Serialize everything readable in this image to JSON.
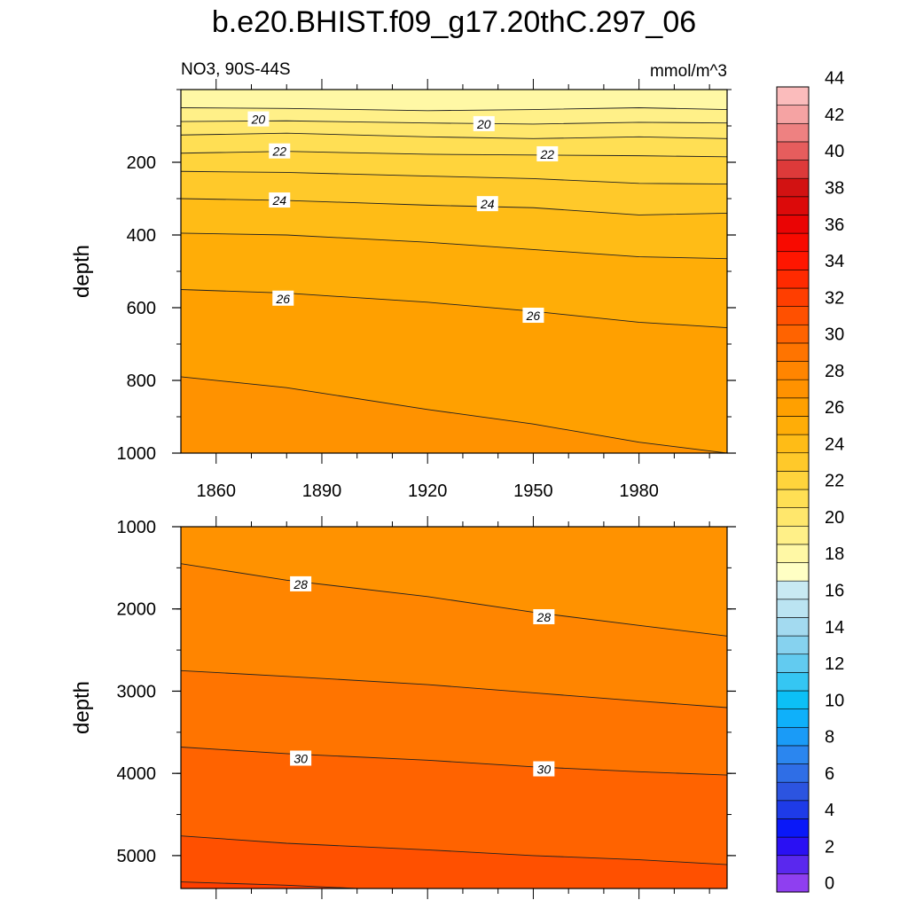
{
  "figure": {
    "title": "b.e20.BHIST.f09_g17.20thC.297_06",
    "left_label": "NO3, 90S-44S",
    "right_label": "mmol/m^3"
  },
  "colorbar": {
    "levels": [
      0,
      2,
      4,
      6,
      8,
      10,
      12,
      14,
      16,
      18,
      20,
      22,
      24,
      26,
      28,
      30,
      32,
      34,
      36,
      38,
      40,
      42,
      44
    ],
    "colors": [
      "#8f3ff0",
      "#5a28ee",
      "#2a10f3",
      "#0a18f8",
      "#1e3be8",
      "#2c54e0",
      "#2f6ee6",
      "#2b86ef",
      "#1a9bf7",
      "#0fb0fa",
      "#0cc0f6",
      "#35c6f3",
      "#62cbf0",
      "#86d2ef",
      "#a3daf0",
      "#bbe4f2",
      "#c8e9f2",
      "#ffffc4",
      "#fff8a5",
      "#fff088",
      "#ffe76c",
      "#ffdf54",
      "#ffd43c",
      "#ffc92a",
      "#ffbc16",
      "#ffad07",
      "#ffa000",
      "#ff9200",
      "#ff8500",
      "#ff7400",
      "#ff6300",
      "#ff5000",
      "#ff3e00",
      "#ff2a00",
      "#ff1600",
      "#f80a00",
      "#ea0404",
      "#dc0a0a",
      "#d21212",
      "#dd3a3a",
      "#e65d5d",
      "#ee8181",
      "#f5a3a3",
      "#fbbcbc"
    ],
    "tick_labels": [
      "0",
      "2",
      "4",
      "6",
      "8",
      "10",
      "12",
      "14",
      "16",
      "18",
      "20",
      "22",
      "24",
      "26",
      "28",
      "30",
      "32",
      "34",
      "36",
      "38",
      "40",
      "42",
      "44"
    ]
  },
  "chart_data": [
    {
      "type": "heatmap",
      "subtype": "filled-contour",
      "panel": "upper",
      "ylabel": "depth",
      "ylim": [
        0,
        1000
      ],
      "y_inverted": true,
      "y_ticks": [
        "200",
        "400",
        "600",
        "800",
        "1000"
      ],
      "x_ticks": [
        "1860",
        "1890",
        "1920",
        "1950",
        "1980"
      ],
      "xlim": [
        1850,
        2005
      ],
      "contour_interval": 1,
      "contours": [
        {
          "level": 19,
          "depth": [
            [
              1850,
              50
            ],
            [
              1880,
              52
            ],
            [
              1920,
              58
            ],
            [
              1950,
              55
            ],
            [
              1980,
              50
            ],
            [
              2005,
              55
            ]
          ]
        },
        {
          "level": 20,
          "depth": [
            [
              1850,
              88
            ],
            [
              1880,
              86
            ],
            [
              1920,
              92
            ],
            [
              1950,
              95
            ],
            [
              1980,
              90
            ],
            [
              2005,
              92
            ]
          ]
        },
        {
          "level": 21,
          "depth": [
            [
              1850,
              125
            ],
            [
              1880,
              120
            ],
            [
              1920,
              130
            ],
            [
              1950,
              135
            ],
            [
              1980,
              130
            ],
            [
              2005,
              135
            ]
          ]
        },
        {
          "level": 22,
          "depth": [
            [
              1850,
              175
            ],
            [
              1880,
              170
            ],
            [
              1920,
              178
            ],
            [
              1950,
              180
            ],
            [
              1980,
              182
            ],
            [
              2005,
              185
            ]
          ]
        },
        {
          "level": 23,
          "depth": [
            [
              1850,
              225
            ],
            [
              1880,
              228
            ],
            [
              1920,
              238
            ],
            [
              1950,
              245
            ],
            [
              1980,
              258
            ],
            [
              2005,
              260
            ]
          ]
        },
        {
          "level": 24,
          "depth": [
            [
              1850,
              300
            ],
            [
              1880,
              305
            ],
            [
              1920,
              318
            ],
            [
              1950,
              325
            ],
            [
              1980,
              345
            ],
            [
              2005,
              340
            ]
          ]
        },
        {
          "level": 25,
          "depth": [
            [
              1850,
              395
            ],
            [
              1880,
              400
            ],
            [
              1920,
              420
            ],
            [
              1950,
              440
            ],
            [
              1980,
              460
            ],
            [
              2005,
              465
            ]
          ]
        },
        {
          "level": 26,
          "depth": [
            [
              1850,
              550
            ],
            [
              1880,
              560
            ],
            [
              1920,
              585
            ],
            [
              1950,
              610
            ],
            [
              1980,
              640
            ],
            [
              2005,
              655
            ]
          ]
        },
        {
          "level": 27,
          "depth": [
            [
              1850,
              790
            ],
            [
              1880,
              820
            ],
            [
              1920,
              880
            ],
            [
              1950,
              920
            ],
            [
              1980,
              970
            ],
            [
              2005,
              1000
            ]
          ]
        }
      ],
      "contour_labels": [
        {
          "text": "20",
          "x": 1872,
          "y": 82
        },
        {
          "text": "20",
          "x": 1936,
          "y": 95
        },
        {
          "text": "22",
          "x": 1878,
          "y": 170
        },
        {
          "text": "22",
          "x": 1954,
          "y": 178
        },
        {
          "text": "24",
          "x": 1878,
          "y": 305
        },
        {
          "text": "24",
          "x": 1937,
          "y": 315
        },
        {
          "text": "26",
          "x": 1879,
          "y": 575
        },
        {
          "text": "26",
          "x": 1950,
          "y": 622
        }
      ]
    },
    {
      "type": "heatmap",
      "subtype": "filled-contour",
      "panel": "lower",
      "ylabel": "depth",
      "ylim": [
        1000,
        5400
      ],
      "y_inverted": true,
      "y_ticks": [
        "1000",
        "2000",
        "3000",
        "4000",
        "5000"
      ],
      "xlim": [
        1850,
        2005
      ],
      "contour_interval": 1,
      "contours": [
        {
          "level": 28,
          "depth": [
            [
              1850,
              1450
            ],
            [
              1880,
              1650
            ],
            [
              1920,
              1850
            ],
            [
              1950,
              2040
            ],
            [
              1980,
              2200
            ],
            [
              2005,
              2330
            ]
          ]
        },
        {
          "level": 29,
          "depth": [
            [
              1850,
              2750
            ],
            [
              1880,
              2820
            ],
            [
              1920,
              2920
            ],
            [
              1950,
              3020
            ],
            [
              1980,
              3120
            ],
            [
              2005,
              3200
            ]
          ]
        },
        {
          "level": 30,
          "depth": [
            [
              1850,
              3680
            ],
            [
              1880,
              3760
            ],
            [
              1920,
              3840
            ],
            [
              1950,
              3920
            ],
            [
              1980,
              3980
            ],
            [
              2005,
              4020
            ]
          ]
        },
        {
          "level": 31,
          "depth": [
            [
              1850,
              4760
            ],
            [
              1880,
              4850
            ],
            [
              1920,
              4930
            ],
            [
              1950,
              5000
            ],
            [
              1980,
              5050
            ],
            [
              2005,
              5110
            ]
          ]
        },
        {
          "level": 32,
          "depth": [
            [
              1850,
              5320
            ],
            [
              1880,
              5360
            ],
            [
              1900,
              5400
            ]
          ]
        }
      ],
      "contour_labels": [
        {
          "text": "28",
          "x": 1884,
          "y": 1700
        },
        {
          "text": "28",
          "x": 1953,
          "y": 2100
        },
        {
          "text": "30",
          "x": 1884,
          "y": 3820
        },
        {
          "text": "30",
          "x": 1953,
          "y": 3950
        }
      ]
    }
  ]
}
